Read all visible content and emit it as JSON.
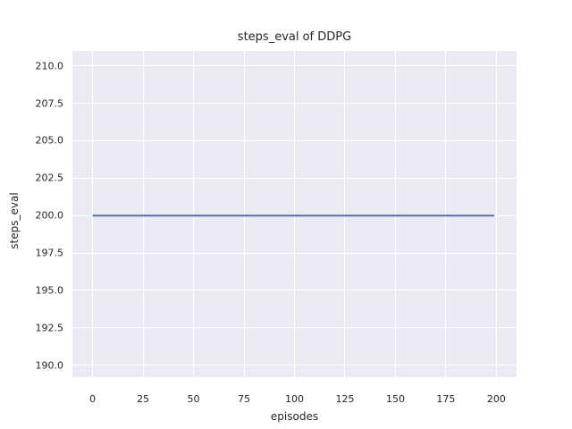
{
  "colors": {
    "figure_bg": "#ffffff",
    "axes_bg": "#eaeaf2",
    "grid": "#ffffff",
    "line": "#4c72b0",
    "text": "#262626"
  },
  "chart_data": {
    "type": "line",
    "title": "steps_eval of DDPG",
    "xlabel": "episodes",
    "ylabel": "steps_eval",
    "xlim": [
      -10,
      210
    ],
    "ylim": [
      189.2,
      211.0
    ],
    "grid": true,
    "legend": "none",
    "x_ticks": [
      0,
      25,
      50,
      75,
      100,
      125,
      150,
      175,
      200
    ],
    "x_tick_labels": [
      "0",
      "25",
      "50",
      "75",
      "100",
      "125",
      "150",
      "175",
      "200"
    ],
    "y_ticks": [
      190.0,
      192.5,
      195.0,
      197.5,
      200.0,
      202.5,
      205.0,
      207.5,
      210.0
    ],
    "y_tick_labels": [
      "190.0",
      "192.5",
      "195.0",
      "197.5",
      "200.0",
      "202.5",
      "205.0",
      "207.5",
      "210.0"
    ],
    "series": [
      {
        "name": "steps_eval",
        "color": "#4c72b0",
        "x": [
          0,
          199
        ],
        "y": [
          200.0,
          200.0
        ]
      }
    ]
  }
}
